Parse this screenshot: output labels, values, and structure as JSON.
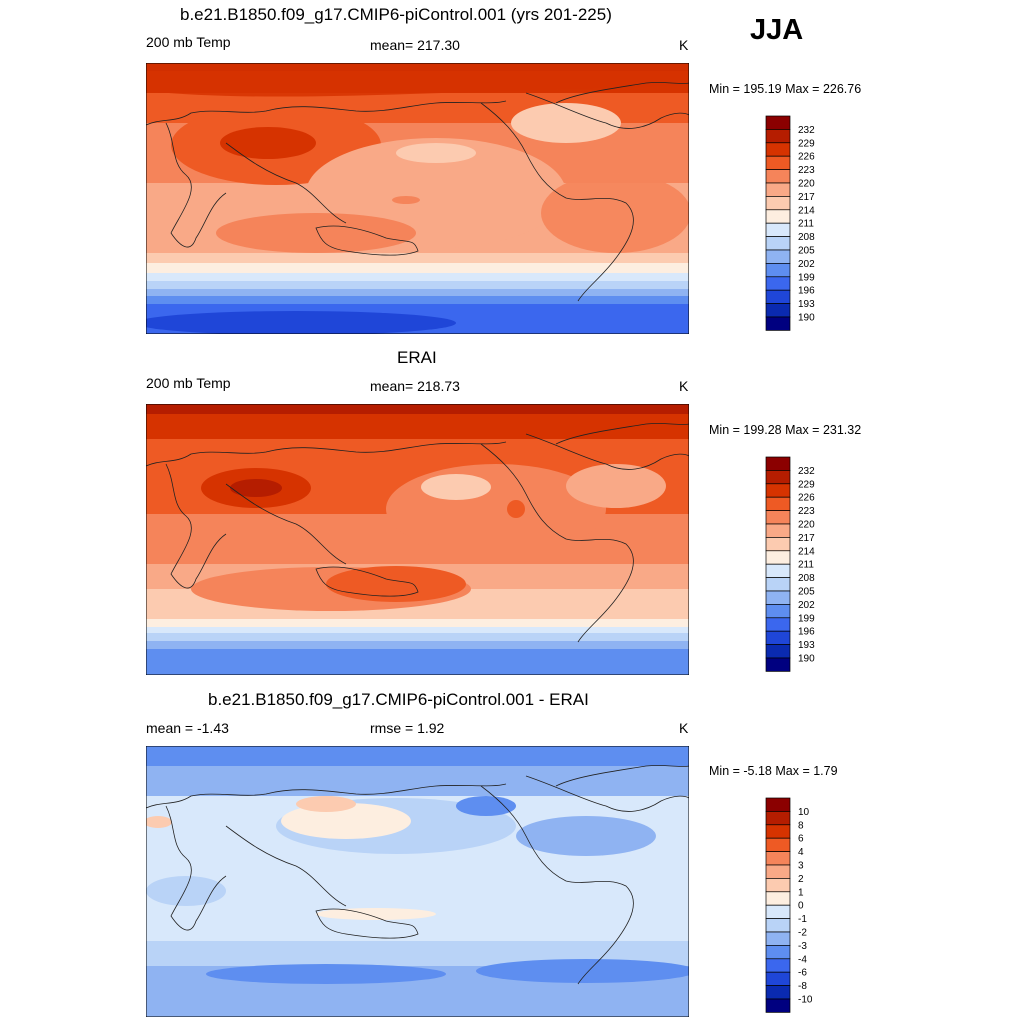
{
  "season": "JJA",
  "panels": [
    {
      "title": "b.e21.B1850.f09_g17.CMIP6-piControl.001 (yrs 201-225)",
      "left_label": "200 mb Temp",
      "center_label": "mean= 217.30",
      "right_label": "K",
      "minmax": "Min = 195.19 Max = 226.76"
    },
    {
      "title": "ERAI",
      "left_label": "200 mb Temp",
      "center_label": "mean= 218.73",
      "right_label": "K",
      "minmax": "Min = 199.28 Max = 231.32"
    },
    {
      "title": "b.e21.B1850.f09_g17.CMIP6-piControl.001 - ERAI",
      "left_label": "mean =  -1.43",
      "center_label": "rmse =   1.92",
      "right_label": "K",
      "minmax": "Min =  -5.18 Max =   1.79"
    }
  ],
  "chart_data": [
    {
      "type": "heatmap",
      "title": "b.e21.B1850.f09_g17.CMIP6-piControl.001 (yrs 201-225)",
      "variable": "200 mb Temp",
      "units": "K",
      "mean": 217.3,
      "min": 195.19,
      "max": 226.76,
      "colorbar_levels": [
        232,
        229,
        226,
        223,
        220,
        217,
        214,
        211,
        208,
        205,
        202,
        199,
        196,
        193,
        190
      ],
      "colorbar_colors": [
        "#8b0000",
        "#b51d00",
        "#d63300",
        "#ee5a24",
        "#f5845a",
        "#f9a987",
        "#fccbb0",
        "#fdeee0",
        "#d8e8fb",
        "#b9d3f7",
        "#8fb3f2",
        "#5e8ef0",
        "#3b67ee",
        "#1f46d8",
        "#0a2ab0",
        "#000080"
      ]
    },
    {
      "type": "heatmap",
      "title": "ERAI",
      "variable": "200 mb Temp",
      "units": "K",
      "mean": 218.73,
      "min": 199.28,
      "max": 231.32,
      "colorbar_levels": [
        232,
        229,
        226,
        223,
        220,
        217,
        214,
        211,
        208,
        205,
        202,
        199,
        196,
        193,
        190
      ],
      "colorbar_colors": [
        "#8b0000",
        "#b51d00",
        "#d63300",
        "#ee5a24",
        "#f5845a",
        "#f9a987",
        "#fccbb0",
        "#fdeee0",
        "#d8e8fb",
        "#b9d3f7",
        "#8fb3f2",
        "#5e8ef0",
        "#3b67ee",
        "#1f46d8",
        "#0a2ab0",
        "#000080"
      ]
    },
    {
      "type": "heatmap",
      "title": "b.e21.B1850.f09_g17.CMIP6-piControl.001 - ERAI",
      "units": "K",
      "mean": -1.43,
      "rmse": 1.92,
      "min": -5.18,
      "max": 1.79,
      "colorbar_levels": [
        10,
        8,
        6,
        4,
        3,
        2,
        1,
        0,
        -1,
        -2,
        -3,
        -4,
        -6,
        -8,
        -10
      ],
      "colorbar_colors": [
        "#8b0000",
        "#b51d00",
        "#d63300",
        "#ee5a24",
        "#f5845a",
        "#f9a987",
        "#fccbb0",
        "#fdeee0",
        "#d8e8fb",
        "#b9d3f7",
        "#8fb3f2",
        "#5e8ef0",
        "#3b67ee",
        "#1f46d8",
        "#0a2ab0",
        "#000080"
      ]
    }
  ]
}
